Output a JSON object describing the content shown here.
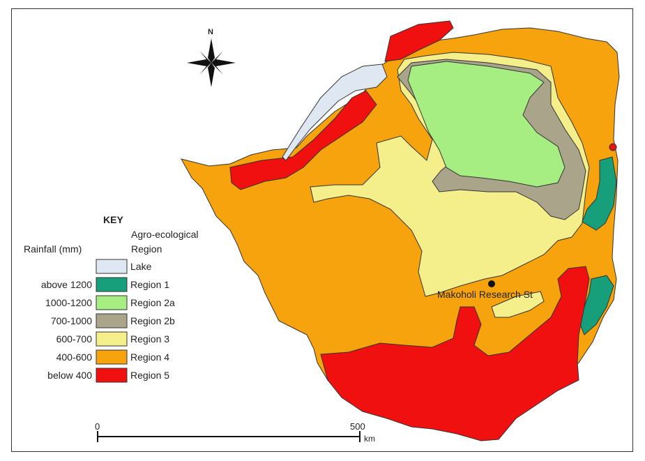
{
  "north_label": "N",
  "key": {
    "title": "KEY",
    "col1_header": "Rainfall (mm)",
    "col2_header_line1": "Agro-ecological",
    "col2_header_line2": "Region",
    "items": [
      {
        "rainfall": "",
        "region": "Lake",
        "color": "#dfe8f2"
      },
      {
        "rainfall": "above 1200",
        "region": "Region 1",
        "color": "#169f7a"
      },
      {
        "rainfall": "1000-1200",
        "region": "Region 2a",
        "color": "#a6ee82"
      },
      {
        "rainfall": "700-1000",
        "region": "Region 2b",
        "color": "#a9a48a"
      },
      {
        "rainfall": "600-700",
        "region": "Region 3",
        "color": "#f4ef8a"
      },
      {
        "rainfall": "400-600",
        "region": "Region 4",
        "color": "#f7a30d"
      },
      {
        "rainfall": "below 400",
        "region": "Region 5",
        "color": "#f01010"
      }
    ]
  },
  "site_label": "Makoholi Research St",
  "scale": {
    "start": "0",
    "end": "500",
    "unit": "km"
  }
}
